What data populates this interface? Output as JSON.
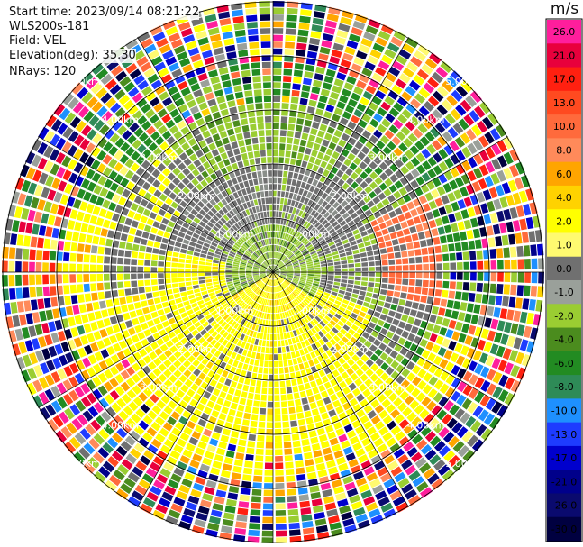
{
  "header": {
    "start_time": "Start time: 2023/09/14 08:21:22",
    "instrument": "WLS200s-181",
    "field": "Field: VEL",
    "elevation": "Elevation(deg): 35.30",
    "nrays": "NRays: 120"
  },
  "range_rings": [
    "1.00km",
    "2.00km",
    "3.00km",
    "4.00km",
    "5.00km"
  ],
  "colorbar": {
    "unit": "m/s",
    "ticks": [
      "26.0",
      "21.0",
      "17.0",
      "13.0",
      "10.0",
      "8.0",
      "6.0",
      "4.0",
      "2.0",
      "1.0",
      "0.0",
      "-1.0",
      "-2.0",
      "-4.0",
      "-6.0",
      "-8.0",
      "-10.0",
      "-13.0",
      "-17.0",
      "-21.0",
      "-26.0",
      "-30.0"
    ],
    "colors": [
      "#ff1e9c",
      "#e8003c",
      "#ff2010",
      "#ff4a20",
      "#ff6a3c",
      "#ff8a5a",
      "#ffa500",
      "#ffd200",
      "#ffff00",
      "#fffa70",
      "#707070",
      "#9aa09a",
      "#9acd32",
      "#4b8c1e",
      "#228b22",
      "#2e8b57",
      "#1e90ff",
      "#1e3cff",
      "#0000cd",
      "#00008b",
      "#0a0a6e",
      "#000040"
    ]
  }
}
